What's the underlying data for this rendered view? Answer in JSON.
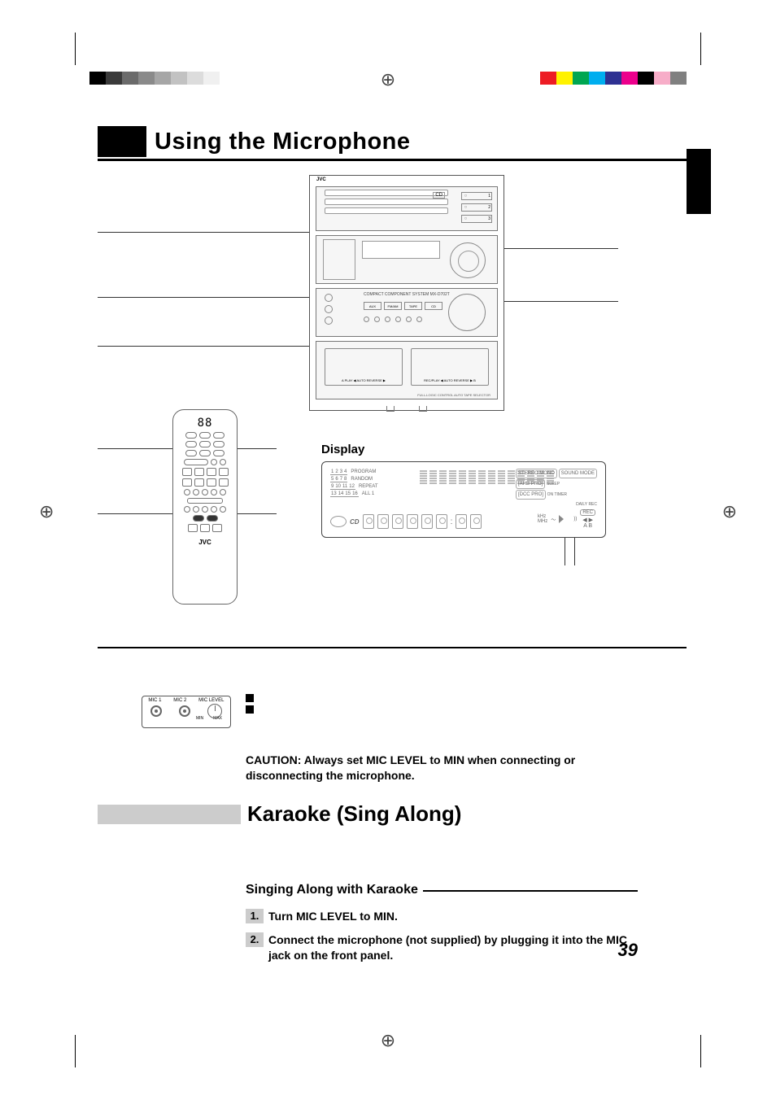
{
  "printmarks": {
    "grays": [
      "#000000",
      "#3a3a3a",
      "#6b6b6b",
      "#8a8a8a",
      "#a6a6a6",
      "#c2c2c2",
      "#dcdcdc",
      "#f0f0f0"
    ],
    "colors": [
      "#ed1c24",
      "#fff200",
      "#00a651",
      "#00aeef",
      "#2e3192",
      "#ec008c",
      "#000000",
      "#f7adc8",
      "#808080"
    ]
  },
  "title": "Using the Microphone",
  "stereo": {
    "brand": "JVC",
    "cd_labels": [
      "1",
      "2",
      "3"
    ],
    "cd_icon": "CD",
    "model_line": "COMPACT COMPONENT SYSTEM   MX-D702T",
    "ctl_buttons": [
      "AUX",
      "FM/AM",
      "TAPE",
      "CD"
    ],
    "deck_a": "A PLAY   ◀ AUTO REVERSE ▶",
    "deck_b": "REC/PLAY   ◀ AUTO REVERSE ▶   B",
    "footer": "FULL-LOGIC CONTROL\nAUTO TAPE SELECTOR"
  },
  "remote": {
    "seg": "88",
    "brand": "JVC"
  },
  "display_label": "Display",
  "display": {
    "tracks": [
      [
        "1",
        "2",
        "3",
        "4"
      ],
      [
        "5",
        "6",
        "7",
        "8"
      ],
      [
        "9",
        "10",
        "11",
        "12"
      ],
      [
        "13",
        "14",
        "15",
        "16"
      ]
    ],
    "track_modes": [
      "PROGRAM",
      "RANDOM",
      "REPEAT",
      "ALL 1"
    ],
    "badges_left": [
      "STEREO MONO",
      "[AHB PRO]",
      "[DCC PRO]"
    ],
    "badges_right": [
      "SOUND MODE",
      "SLEEP",
      "ON TIMER",
      "DAILY REC"
    ],
    "cd_label": "CD",
    "khz_mhz": "kHz\nMHz",
    "rec_badge": "REC",
    "arrows": "◀ ▶\nA B",
    "eq_bar_count": 14,
    "eq_bar_segments": 6
  },
  "mic_jacks": {
    "labels": [
      "MIC 1",
      "MIC 2",
      "MIC LEVEL"
    ],
    "min": "MIN",
    "max": "MAX"
  },
  "caution": "CAUTION: Always set MIC LEVEL to MIN when connecting or disconnecting the microphone.",
  "karaoke_title": "Karaoke (Sing Along)",
  "subhead": "Singing Along with Karaoke",
  "steps": [
    {
      "n": "1.",
      "text": "Turn MIC LEVEL to MIN."
    },
    {
      "n": "2.",
      "text": "Connect the microphone (not supplied) by plugging it into the MIC jack on the front panel."
    }
  ],
  "page_number": "39"
}
